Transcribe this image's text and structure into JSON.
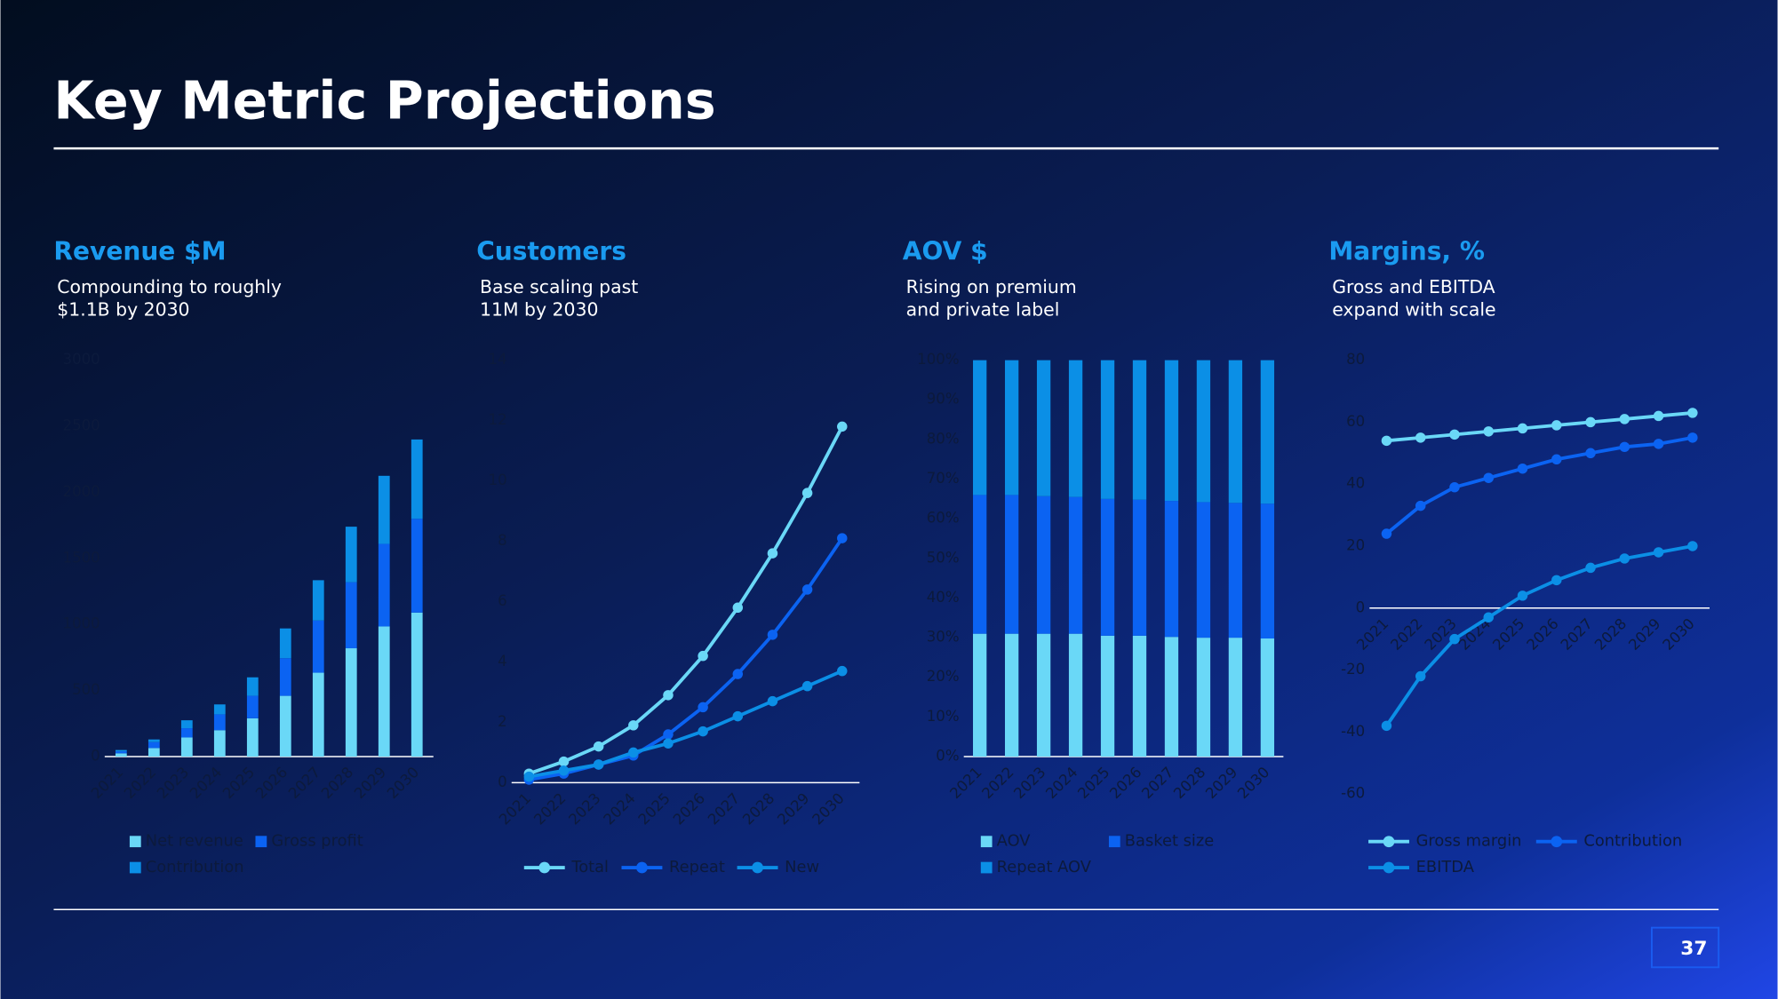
{
  "title": "Key Metric Projections",
  "page_number": "37",
  "chart_data": [
    {
      "type": "stacked_bar",
      "title": "Revenue $M",
      "subtitle": [
        "Compounding to roughly",
        "$1.1B by 2030"
      ],
      "categories": [
        "2021",
        "2022",
        "2023",
        "2024",
        "2025",
        "2026",
        "2027",
        "2028",
        "2029",
        "2030"
      ],
      "series": [
        {
          "name": "Net revenue",
          "color": "#6ad8f7",
          "values": [
            25,
            65,
            145,
            200,
            290,
            460,
            635,
            820,
            985,
            1090
          ]
        },
        {
          "name": "Gross profit",
          "color": "#0b63f2",
          "values": [
            15,
            45,
            70,
            120,
            170,
            285,
            395,
            500,
            625,
            710
          ]
        },
        {
          "name": "Contribution",
          "color": "#0b8fe6",
          "values": [
            10,
            20,
            60,
            75,
            140,
            225,
            305,
            420,
            515,
            600
          ]
        }
      ],
      "ylim": [
        0,
        3000
      ],
      "yticks": [
        0,
        500,
        1000,
        1500,
        2000,
        2500,
        3000
      ],
      "grid": false
    },
    {
      "type": "line",
      "title": "Customers",
      "subtitle": [
        "Base scaling past",
        "11M by 2030"
      ],
      "categories": [
        "2021",
        "2022",
        "2023",
        "2024",
        "2025",
        "2026",
        "2027",
        "2028",
        "2029",
        "2030"
      ],
      "series": [
        {
          "name": "Total",
          "color": "#6ad8f7",
          "values": [
            0.3,
            0.7,
            1.2,
            1.9,
            2.9,
            4.2,
            5.8,
            7.6,
            9.6,
            11.8
          ]
        },
        {
          "name": "Repeat",
          "color": "#0b63f2",
          "values": [
            0.1,
            0.3,
            0.6,
            0.9,
            1.6,
            2.5,
            3.6,
            4.9,
            6.4,
            8.1
          ]
        },
        {
          "name": "New",
          "color": "#0b8fe6",
          "values": [
            0.2,
            0.4,
            0.6,
            1.0,
            1.3,
            1.7,
            2.2,
            2.7,
            3.2,
            3.7
          ]
        }
      ],
      "ylim": [
        0,
        14
      ],
      "yticks": [
        0,
        2,
        4,
        6,
        8,
        10,
        12,
        14
      ],
      "grid": false
    },
    {
      "type": "stacked_bar",
      "title": "AOV $",
      "subtitle": [
        "Rising on premium",
        "and private label"
      ],
      "categories": [
        "2021",
        "2022",
        "2023",
        "2024",
        "2025",
        "2026",
        "2027",
        "2028",
        "2029",
        "2030"
      ],
      "series": [
        {
          "name": "AOV",
          "color": "#6ad8f7",
          "values": [
            31,
            31,
            31,
            31,
            30.5,
            30.5,
            30.2,
            30,
            30,
            29.8
          ]
        },
        {
          "name": "Basket size",
          "color": "#0b63f2",
          "values": [
            35,
            35,
            34.7,
            34.5,
            34.5,
            34.3,
            34.3,
            34.2,
            34,
            34
          ]
        },
        {
          "name": "Repeat AOV",
          "color": "#0b8fe6",
          "values": [
            34,
            34,
            34.3,
            34.5,
            35,
            35.2,
            35.5,
            35.8,
            36,
            36.2
          ]
        }
      ],
      "ylim": [
        0,
        100
      ],
      "yticks": [
        {
          "value": 0,
          "label": "0%"
        },
        {
          "value": 10,
          "label": "10%"
        },
        {
          "value": 20,
          "label": "20%"
        },
        {
          "value": 30,
          "label": "30%"
        },
        {
          "value": 40,
          "label": "40%"
        },
        {
          "value": 50,
          "label": "50%"
        },
        {
          "value": 60,
          "label": "60%"
        },
        {
          "value": 70,
          "label": "70%"
        },
        {
          "value": 80,
          "label": "80%"
        },
        {
          "value": 90,
          "label": "90%"
        },
        {
          "value": 100,
          "label": "100%"
        }
      ],
      "grid": false
    },
    {
      "type": "line",
      "title": "Margins, %",
      "subtitle": [
        "Gross and EBITDA",
        "expand with scale"
      ],
      "categories": [
        "2021",
        "2022",
        "2023",
        "2024",
        "2025",
        "2026",
        "2027",
        "2028",
        "2029",
        "2030"
      ],
      "series": [
        {
          "name": "Gross margin",
          "color": "#6ad8f7",
          "values": [
            54,
            55,
            56,
            57,
            58,
            59,
            60,
            61,
            62,
            63
          ]
        },
        {
          "name": "Contribution",
          "color": "#0b63f2",
          "values": [
            24,
            33,
            39,
            42,
            45,
            48,
            50,
            52,
            53,
            55
          ]
        },
        {
          "name": "EBITDA",
          "color": "#0b8fe6",
          "values": [
            -38,
            -22,
            -10,
            -3,
            4,
            9,
            13,
            16,
            18,
            20
          ]
        }
      ],
      "ylim": [
        -60,
        80
      ],
      "yticks": [
        -60,
        -40,
        -20,
        0,
        20,
        40,
        60,
        80
      ],
      "grid": false
    }
  ]
}
